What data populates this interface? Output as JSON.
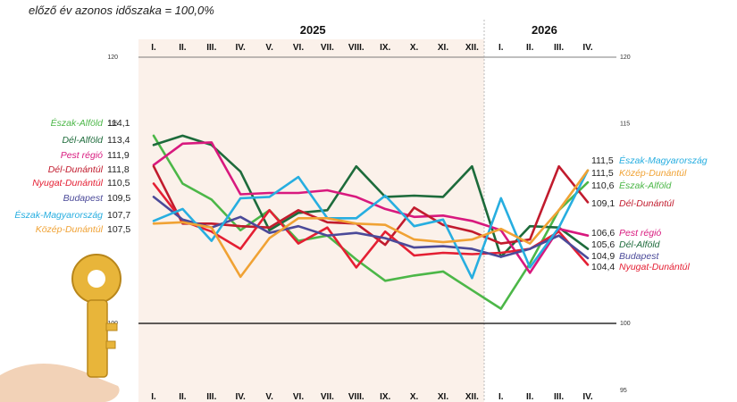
{
  "chart_data": {
    "type": "line",
    "subtitle": "előző év azonos időszaka = 100,0%",
    "years": [
      {
        "label": "2025",
        "from": 0,
        "to": 11
      },
      {
        "label": "2026",
        "from": 12,
        "to": 15
      }
    ],
    "categories": [
      "I.",
      "II.",
      "III.",
      "IV.",
      "V.",
      "VI.",
      "VII.",
      "VIII.",
      "IX.",
      "X.",
      "XI.",
      "XII.",
      "I.",
      "II.",
      "III.",
      "IV."
    ],
    "yticks": [
      95,
      100,
      115,
      120
    ],
    "ylim": [
      95,
      120
    ],
    "reference_line": 100,
    "grid": false,
    "series": [
      {
        "name": "Észak-Alföld",
        "color": "#4cb748",
        "start": "114,1",
        "end": "110,6",
        "values": [
          114.1,
          110.5,
          109.3,
          107.0,
          108.5,
          106.2,
          106.6,
          104.8,
          103.2,
          103.6,
          103.9,
          102.5,
          101.1,
          104.5,
          108.5,
          110.6
        ]
      },
      {
        "name": "Dél-Alföld",
        "color": "#1d6b3b",
        "start": "113,4",
        "end": "105,6",
        "values": [
          113.4,
          114.1,
          113.4,
          111.4,
          107.0,
          108.3,
          108.5,
          111.8,
          109.5,
          109.6,
          109.5,
          111.8,
          105.0,
          107.3,
          107.2,
          105.6
        ]
      },
      {
        "name": "Pest régió",
        "color": "#d8197e",
        "start": "111,9",
        "end": "106,6",
        "values": [
          111.9,
          113.5,
          113.6,
          109.7,
          109.8,
          109.8,
          110.0,
          109.5,
          108.6,
          108.0,
          108.1,
          107.7,
          107.0,
          103.8,
          107.1,
          106.6
        ]
      },
      {
        "name": "Dél-Dunántúl",
        "color": "#c11b2d",
        "start": "111,8",
        "end": "109,1",
        "values": [
          111.8,
          107.5,
          107.5,
          107.3,
          107.2,
          108.5,
          107.6,
          107.5,
          105.9,
          108.7,
          107.4,
          106.9,
          106.0,
          106.3,
          111.8,
          109.1
        ]
      },
      {
        "name": "Nyugat-Dunántúl",
        "color": "#e41f33",
        "start": "110,5",
        "end": "104,4",
        "values": [
          110.5,
          107.7,
          106.9,
          105.6,
          108.5,
          106.0,
          107.2,
          104.2,
          106.9,
          105.1,
          105.3,
          105.2,
          105.3,
          105.6,
          106.9,
          104.4
        ]
      },
      {
        "name": "Budapest",
        "color": "#4b4a99",
        "start": "109,5",
        "end": "104,9",
        "values": [
          109.5,
          107.8,
          107.2,
          108.0,
          106.8,
          107.3,
          106.6,
          106.8,
          106.4,
          105.7,
          105.8,
          105.6,
          105.0,
          105.6,
          106.6,
          104.9
        ]
      },
      {
        "name": "Észak-Magyarország",
        "color": "#27aee0",
        "start": "107,7",
        "end": "111,5",
        "values": [
          107.7,
          108.6,
          106.2,
          109.4,
          109.5,
          111.0,
          107.9,
          107.9,
          109.6,
          107.3,
          107.8,
          103.4,
          109.4,
          104.2,
          107.2,
          111.5
        ]
      },
      {
        "name": "Közép-Dunántúl",
        "color": "#f0a234",
        "start": "107,5",
        "end": "111,5",
        "values": [
          107.5,
          107.6,
          107.2,
          103.5,
          106.4,
          107.9,
          107.9,
          107.5,
          107.4,
          106.3,
          106.1,
          106.3,
          107.1,
          106.0,
          108.5,
          111.5
        ]
      }
    ]
  }
}
